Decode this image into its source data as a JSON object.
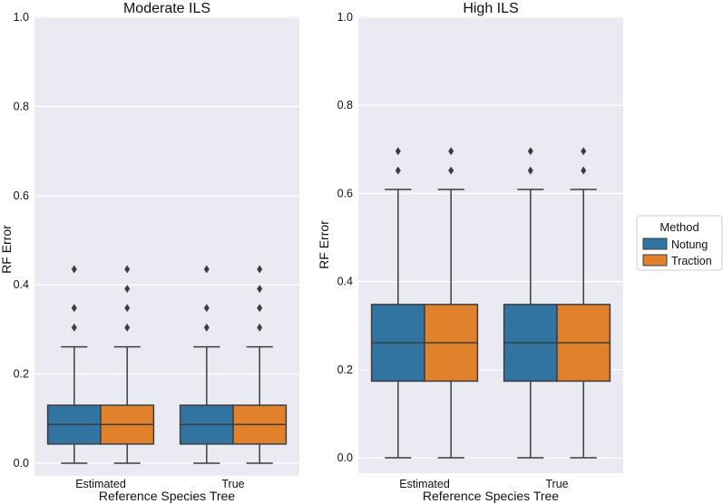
{
  "chart_data": [
    {
      "type": "boxplot",
      "title": "Moderate ILS",
      "xlabel": "Reference Species Tree",
      "ylabel": "RF Error",
      "ylim": [
        0,
        1.0
      ],
      "yticks": [
        0.0,
        0.2,
        0.4,
        0.6,
        0.8,
        1.0
      ],
      "ytick_labels": [
        "0.0",
        "0.2",
        "0.4",
        "0.6",
        "0.8",
        "1.0"
      ],
      "categories": [
        "Estimated",
        "True"
      ],
      "series": [
        {
          "name": "Notung",
          "boxes": [
            {
              "whisker_low": 0.0,
              "q1": 0.043,
              "median": 0.087,
              "q3": 0.13,
              "whisker_high": 0.261,
              "outliers": [
                0.304,
                0.348,
                0.435
              ]
            },
            {
              "whisker_low": 0.0,
              "q1": 0.043,
              "median": 0.087,
              "q3": 0.13,
              "whisker_high": 0.261,
              "outliers": [
                0.304,
                0.348,
                0.435
              ]
            }
          ]
        },
        {
          "name": "Traction",
          "boxes": [
            {
              "whisker_low": 0.0,
              "q1": 0.043,
              "median": 0.087,
              "q3": 0.13,
              "whisker_high": 0.261,
              "outliers": [
                0.304,
                0.348,
                0.391,
                0.435
              ]
            },
            {
              "whisker_low": 0.0,
              "q1": 0.043,
              "median": 0.087,
              "q3": 0.13,
              "whisker_high": 0.261,
              "outliers": [
                0.304,
                0.348,
                0.391,
                0.435
              ]
            }
          ]
        }
      ]
    },
    {
      "type": "boxplot",
      "title": "High ILS",
      "xlabel": "Reference Species Tree",
      "ylabel": "RF Error",
      "ylim": [
        0,
        1.0
      ],
      "yticks": [
        0.0,
        0.2,
        0.4,
        0.6,
        0.8,
        1.0
      ],
      "ytick_labels": [
        "0.0",
        "0.2",
        "0.4",
        "0.6",
        "0.8",
        "1.0"
      ],
      "categories": [
        "Estimated",
        "True"
      ],
      "series": [
        {
          "name": "Notung",
          "boxes": [
            {
              "whisker_low": 0.0,
              "q1": 0.174,
              "median": 0.261,
              "q3": 0.348,
              "whisker_high": 0.609,
              "outliers": [
                0.652,
                0.696
              ]
            },
            {
              "whisker_low": 0.0,
              "q1": 0.174,
              "median": 0.261,
              "q3": 0.348,
              "whisker_high": 0.609,
              "outliers": [
                0.652,
                0.696
              ]
            }
          ]
        },
        {
          "name": "Traction",
          "boxes": [
            {
              "whisker_low": 0.0,
              "q1": 0.174,
              "median": 0.261,
              "q3": 0.348,
              "whisker_high": 0.609,
              "outliers": [
                0.652,
                0.696
              ]
            },
            {
              "whisker_low": 0.0,
              "q1": 0.174,
              "median": 0.261,
              "q3": 0.348,
              "whisker_high": 0.609,
              "outliers": [
                0.652,
                0.696
              ]
            }
          ]
        }
      ]
    }
  ],
  "legend": {
    "title": "Method",
    "placement": "right",
    "items": [
      {
        "label": "Notung",
        "color": "#3274a1"
      },
      {
        "label": "Traction",
        "color": "#e1812c"
      }
    ]
  },
  "colors": {
    "plot_background": "#eaeaf2",
    "grid": "#ffffff",
    "line": "#3d3d3d"
  }
}
